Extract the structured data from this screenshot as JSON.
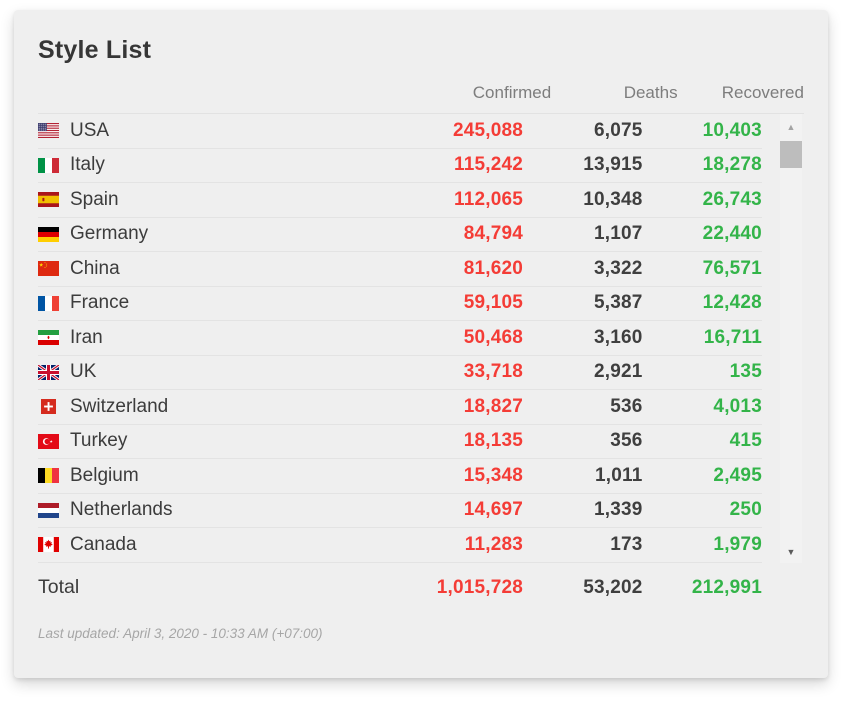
{
  "colors": {
    "confirmed": "#f43c36",
    "deaths": "#3f3f3f",
    "recovered": "#33b449",
    "card_bg": "#efefef"
  },
  "card": {
    "title": "Style List",
    "columns": {
      "confirmed": "Confirmed",
      "deaths": "Deaths",
      "recovered": "Recovered"
    },
    "rows": [
      {
        "country": "USA",
        "flag": "us",
        "confirmed": "245,088",
        "deaths": "6,075",
        "recovered": "10,403"
      },
      {
        "country": "Italy",
        "flag": "it",
        "confirmed": "115,242",
        "deaths": "13,915",
        "recovered": "18,278"
      },
      {
        "country": "Spain",
        "flag": "es",
        "confirmed": "112,065",
        "deaths": "10,348",
        "recovered": "26,743"
      },
      {
        "country": "Germany",
        "flag": "de",
        "confirmed": "84,794",
        "deaths": "1,107",
        "recovered": "22,440"
      },
      {
        "country": "China",
        "flag": "cn",
        "confirmed": "81,620",
        "deaths": "3,322",
        "recovered": "76,571"
      },
      {
        "country": "France",
        "flag": "fr",
        "confirmed": "59,105",
        "deaths": "5,387",
        "recovered": "12,428"
      },
      {
        "country": "Iran",
        "flag": "ir",
        "confirmed": "50,468",
        "deaths": "3,160",
        "recovered": "16,711"
      },
      {
        "country": "UK",
        "flag": "gb",
        "confirmed": "33,718",
        "deaths": "2,921",
        "recovered": "135"
      },
      {
        "country": "Switzerland",
        "flag": "ch",
        "confirmed": "18,827",
        "deaths": "536",
        "recovered": "4,013"
      },
      {
        "country": "Turkey",
        "flag": "tr",
        "confirmed": "18,135",
        "deaths": "356",
        "recovered": "415"
      },
      {
        "country": "Belgium",
        "flag": "be",
        "confirmed": "15,348",
        "deaths": "1,011",
        "recovered": "2,495"
      },
      {
        "country": "Netherlands",
        "flag": "nl",
        "confirmed": "14,697",
        "deaths": "1,339",
        "recovered": "250"
      },
      {
        "country": "Canada",
        "flag": "ca",
        "confirmed": "11,283",
        "deaths": "173",
        "recovered": "1,979"
      }
    ],
    "total": {
      "label": "Total",
      "confirmed": "1,015,728",
      "deaths": "53,202",
      "recovered": "212,991"
    },
    "last_updated": "Last updated: April 3, 2020 - 10:33 AM (+07:00)"
  },
  "scrollbar": {
    "up_icon": "▲",
    "down_icon": "▼"
  }
}
